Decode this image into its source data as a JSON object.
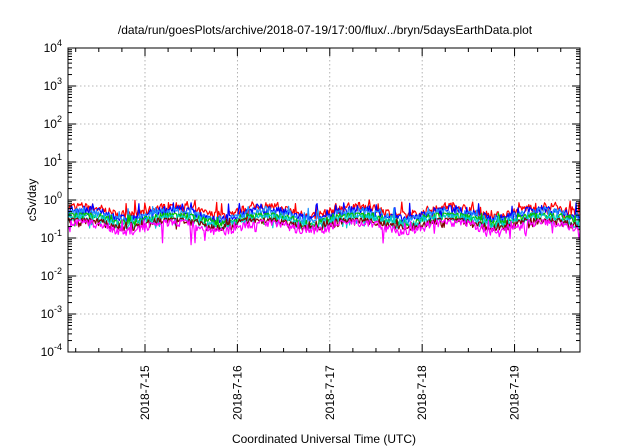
{
  "chart_data": {
    "type": "line",
    "title": "/data/run/goesPlots/archive/2018-07-19/17:00/flux/../bryn/5daysEarthData.plot",
    "xlabel": "Coordinated Universal Time (UTC)",
    "ylabel": "cSv/day",
    "yscale": "log",
    "ylim": [
      0.0001,
      10000
    ],
    "yticks": [
      {
        "base": "10",
        "exp": "-4",
        "value": 0.0001
      },
      {
        "base": "10",
        "exp": "-3",
        "value": 0.001
      },
      {
        "base": "10",
        "exp": "-2",
        "value": 0.01
      },
      {
        "base": "10",
        "exp": "-1",
        "value": 0.1
      },
      {
        "base": "10",
        "exp": "0",
        "value": 1
      },
      {
        "base": "10",
        "exp": "1",
        "value": 10
      },
      {
        "base": "10",
        "exp": "2",
        "value": 100
      },
      {
        "base": "10",
        "exp": "3",
        "value": 1000
      },
      {
        "base": "10",
        "exp": "4",
        "value": 10000
      }
    ],
    "xlim": [
      "2018-07-14 04:00",
      "2018-07-19 17:00"
    ],
    "xticks": [
      "2018-7-15",
      "2018-7-16",
      "2018-7-17",
      "2018-7-18",
      "2018-7-19"
    ],
    "grid": true,
    "legend": "none",
    "series": [
      {
        "color": "#ff0000",
        "baseline": 0.55,
        "min_dip": 0.3,
        "max_peak": 1.0
      },
      {
        "color": "#0000ff",
        "baseline": 0.45,
        "min_dip": 0.25,
        "max_peak": 0.85
      },
      {
        "color": "#1e90ff",
        "baseline": 0.4,
        "min_dip": 0.22,
        "max_peak": 0.7
      },
      {
        "color": "#00c000",
        "baseline": 0.33,
        "min_dip": 0.2,
        "max_peak": 0.45
      },
      {
        "color": "#00cccc",
        "baseline": 0.29,
        "min_dip": 0.18,
        "max_peak": 0.4
      },
      {
        "color": "#800000",
        "baseline": 0.25,
        "min_dip": 0.16,
        "max_peak": 0.33
      },
      {
        "color": "#ff00ff",
        "baseline": 0.21,
        "min_dip": 0.045,
        "max_peak": 0.3
      }
    ]
  }
}
